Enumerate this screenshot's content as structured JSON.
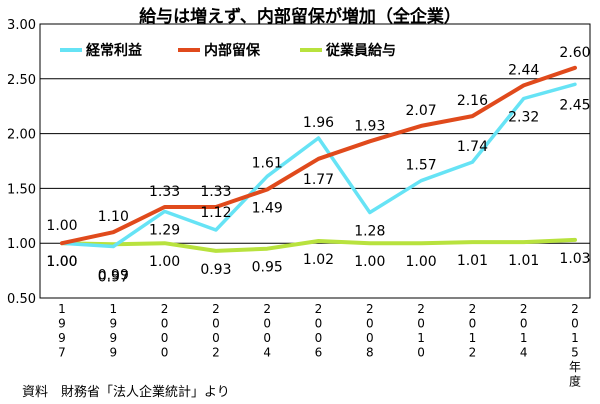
{
  "title": "給与は増えず、内部留保が増加（全企業）",
  "source": "資料　財務省「法人企業統計」より",
  "chart_data": {
    "type": "line",
    "x": [
      "1997",
      "1999",
      "2000",
      "2002",
      "2004",
      "2006",
      "2008",
      "2010",
      "2012",
      "2014",
      "2015年度"
    ],
    "xlabel": "",
    "ylabel": "",
    "ylim": [
      0.5,
      3.0
    ],
    "yticks": [
      "0.50",
      "1.00",
      "1.50",
      "2.00",
      "2.50",
      "3.00"
    ],
    "grid": true,
    "legend_position": "top-left",
    "series": [
      {
        "name": "経常利益",
        "color": "#66e3f5",
        "values": [
          1.0,
          0.97,
          1.29,
          1.12,
          1.61,
          1.96,
          1.28,
          1.57,
          1.74,
          2.32,
          2.45
        ],
        "labels": [
          "1.00",
          "0.97",
          "1.29",
          "1.12",
          "1.61",
          "1.96",
          "1.28",
          "1.57",
          "1.74",
          "2.32",
          "2.45"
        ]
      },
      {
        "name": "内部留保",
        "color": "#e04a1c",
        "values": [
          1.0,
          1.1,
          1.33,
          1.33,
          1.49,
          1.77,
          1.93,
          2.07,
          2.16,
          2.44,
          2.6
        ],
        "labels": [
          "1.00",
          "1.10",
          "1.33",
          "1.33",
          "1.49",
          "1.77",
          "1.93",
          "2.07",
          "2.16",
          "2.44",
          "2.60"
        ]
      },
      {
        "name": "従業員給与",
        "color": "#b8e23e",
        "values": [
          1.0,
          0.99,
          1.0,
          0.93,
          0.95,
          1.02,
          1.0,
          1.0,
          1.01,
          1.01,
          1.03
        ],
        "labels": [
          "1.00",
          "0.99",
          "1.00",
          "0.93",
          "0.95",
          "1.02",
          "1.00",
          "1.00",
          "1.01",
          "1.01",
          "1.03"
        ]
      }
    ]
  }
}
